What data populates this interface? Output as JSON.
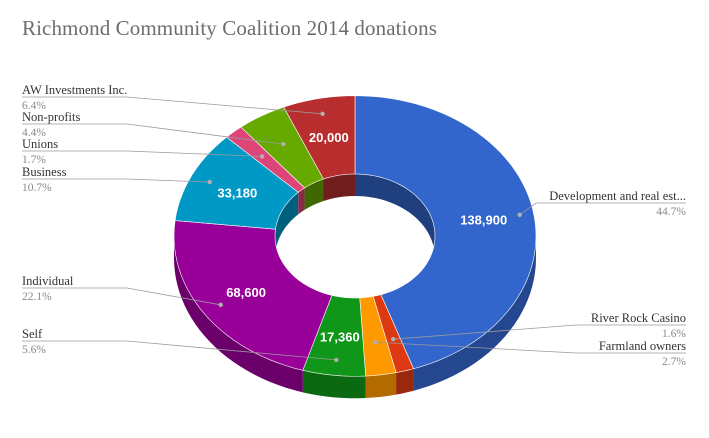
{
  "chart_data": {
    "type": "pie",
    "style": "3d-donut",
    "title": "Richmond Community Coalition 2014 donations",
    "slices": [
      {
        "label": "Development and real est...",
        "value": 138900,
        "percent_label": "44.7%",
        "value_label": "138,900",
        "color": "#3366cc"
      },
      {
        "label": "River Rock Casino",
        "value": 4970,
        "percent_label": "1.6%",
        "value_label": "",
        "color": "#dc3912"
      },
      {
        "label": "Farmland owners",
        "value": 8390,
        "percent_label": "2.7%",
        "value_label": "",
        "color": "#ff9900"
      },
      {
        "label": "Self",
        "value": 17360,
        "percent_label": "5.6%",
        "value_label": "17,360",
        "color": "#109618"
      },
      {
        "label": "Individual",
        "value": 68600,
        "percent_label": "22.1%",
        "value_label": "68,600",
        "color": "#990099"
      },
      {
        "label": "Business",
        "value": 33180,
        "percent_label": "10.7%",
        "value_label": "33,180",
        "color": "#0099c6"
      },
      {
        "label": "Unions",
        "value": 5280,
        "percent_label": "1.7%",
        "value_label": "",
        "color": "#dd4477"
      },
      {
        "label": "Non-profits",
        "value": 13670,
        "percent_label": "4.4%",
        "value_label": "",
        "color": "#66aa00"
      },
      {
        "label": "AW Investments Inc.",
        "value": 20000,
        "percent_label": "6.4%",
        "value_label": "20,000",
        "color": "#b82e2e"
      }
    ]
  }
}
